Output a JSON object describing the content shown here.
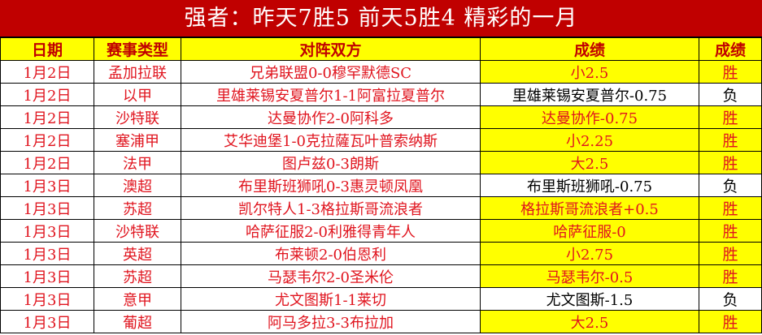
{
  "title": "强者：昨天7胜5 前天5胜4 精彩的一月",
  "headers": [
    "日期",
    "赛事类型",
    "对阵双方",
    "成绩",
    "成绩"
  ],
  "colors": {
    "title_bg": "#c00000",
    "header_bg": "#ffff00",
    "win_bg": "#ffff00",
    "text_red": "#e0141e"
  },
  "rows": [
    {
      "date": "1月2日",
      "league": "孟加拉联",
      "match": "兄弟联盟0-0穆罕默德SC",
      "pick": "小2.5",
      "result": "胜",
      "win": true
    },
    {
      "date": "1月2日",
      "league": "以甲",
      "match": "里雄莱锡安夏普尔1-1阿富拉夏普尔",
      "pick": "里雄莱锡安夏普尔-0.75",
      "result": "负",
      "win": false
    },
    {
      "date": "1月2日",
      "league": "沙特联",
      "match": "达曼协作2-0阿科多",
      "pick": "达曼协作-0.75",
      "result": "胜",
      "win": true
    },
    {
      "date": "1月2日",
      "league": "塞浦甲",
      "match": "艾华迪堡1-0克拉薩瓦叶普索纳斯",
      "pick": "小2.25",
      "result": "胜",
      "win": true
    },
    {
      "date": "1月2日",
      "league": "法甲",
      "match": "图卢兹0-3朗斯",
      "pick": "大2.5",
      "result": "胜",
      "win": true
    },
    {
      "date": "1月3日",
      "league": "澳超",
      "match": "布里斯班狮吼0-3惠灵顿凤凰",
      "pick": "布里斯班狮吼-0.75",
      "result": "负",
      "win": false
    },
    {
      "date": "1月3日",
      "league": "苏超",
      "match": "凯尔特人1-3格拉斯哥流浪者",
      "pick": "格拉斯哥流浪者+0.5",
      "result": "胜",
      "win": true
    },
    {
      "date": "1月3日",
      "league": "沙特联",
      "match": "哈萨征服2-0利雅得青年人",
      "pick": "哈萨征服-0",
      "result": "胜",
      "win": true
    },
    {
      "date": "1月3日",
      "league": "英超",
      "match": "布莱顿2-0伯恩利",
      "pick": "小2.75",
      "result": "胜",
      "win": true
    },
    {
      "date": "1月3日",
      "league": "苏超",
      "match": "马瑟韦尔2-0圣米伦",
      "pick": "马瑟韦尔-0.5",
      "result": "胜",
      "win": true
    },
    {
      "date": "1月3日",
      "league": "意甲",
      "match": "尤文图斯1-1莱切",
      "pick": "尤文图斯-1.5",
      "result": "负",
      "win": false
    },
    {
      "date": "1月3日",
      "league": "葡超",
      "match": "阿马多拉3-3布拉加",
      "pick": "大2.5",
      "result": "胜",
      "win": true
    }
  ]
}
